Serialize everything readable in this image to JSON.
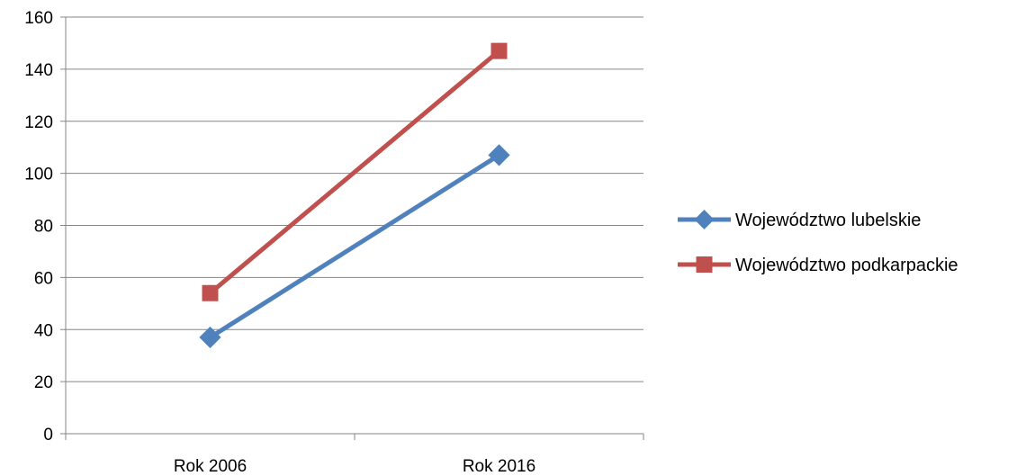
{
  "chart_data": {
    "type": "line",
    "categories": [
      "Rok 2006",
      "Rok 2016"
    ],
    "series": [
      {
        "name": "Województwo lubelskie",
        "values": [
          37,
          107
        ],
        "color": "#4F81BD",
        "marker": "diamond"
      },
      {
        "name": "Województwo podkarpackie",
        "values": [
          54,
          147
        ],
        "color": "#C0504D",
        "marker": "square"
      }
    ],
    "ylim": [
      0,
      160
    ],
    "yticks": [
      0,
      20,
      40,
      60,
      80,
      100,
      120,
      140,
      160
    ],
    "grid": true,
    "legend": "right"
  }
}
